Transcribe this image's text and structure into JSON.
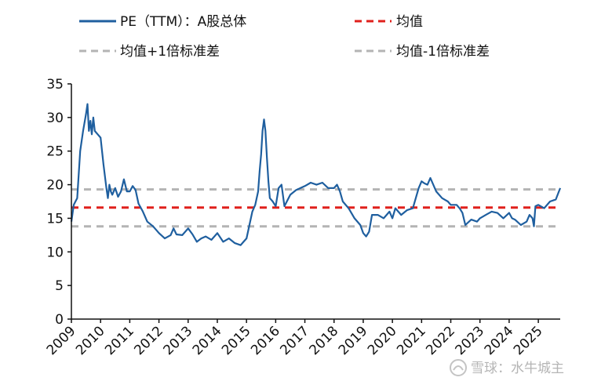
{
  "chart_data": {
    "type": "line",
    "title": "",
    "xlabel": "",
    "ylabel": "",
    "ylim": [
      0,
      35
    ],
    "yticks": [
      0,
      5,
      10,
      15,
      20,
      25,
      30,
      35
    ],
    "xlim": [
      2009.0,
      2025.75
    ],
    "xticks": [
      "2009",
      "2010",
      "2011",
      "2012",
      "2013",
      "2014",
      "2015",
      "2016",
      "2017",
      "2018",
      "2019",
      "2020",
      "2021",
      "2022",
      "2023",
      "2024",
      "2025"
    ],
    "legend": [
      {
        "label": "PE（TTM）：A股总体",
        "color": "#1f5f9f",
        "style": "solid"
      },
      {
        "label": "均值",
        "color": "#e0201c",
        "style": "dashed"
      },
      {
        "label": "均值+1倍标准差",
        "color": "#b4b4b4",
        "style": "dashed"
      },
      {
        "label": "均值-1倍标准差",
        "color": "#b4b4b4",
        "style": "dashed"
      }
    ],
    "reference_lines": {
      "mean": 16.6,
      "plus_1sd": 19.3,
      "minus_1sd": 13.8
    },
    "series": [
      {
        "name": "PE（TTM）：A股总体",
        "x": [
          2009.0,
          2009.08,
          2009.2,
          2009.3,
          2009.4,
          2009.5,
          2009.55,
          2009.6,
          2009.65,
          2009.7,
          2009.75,
          2009.8,
          2009.9,
          2010.0,
          2010.1,
          2010.2,
          2010.25,
          2010.3,
          2010.35,
          2010.4,
          2010.5,
          2010.6,
          2010.7,
          2010.8,
          2010.9,
          2011.0,
          2011.1,
          2011.2,
          2011.3,
          2011.45,
          2011.6,
          2011.8,
          2012.0,
          2012.2,
          2012.4,
          2012.5,
          2012.6,
          2012.8,
          2013.0,
          2013.15,
          2013.3,
          2013.45,
          2013.6,
          2013.8,
          2014.0,
          2014.2,
          2014.4,
          2014.6,
          2014.8,
          2014.9,
          2015.0,
          2015.1,
          2015.2,
          2015.3,
          2015.4,
          2015.45,
          2015.5,
          2015.55,
          2015.6,
          2015.65,
          2015.7,
          2015.75,
          2015.8,
          2015.9,
          2016.0,
          2016.1,
          2016.2,
          2016.3,
          2016.5,
          2016.7,
          2017.0,
          2017.2,
          2017.4,
          2017.6,
          2017.8,
          2018.0,
          2018.1,
          2018.2,
          2018.3,
          2018.5,
          2018.7,
          2018.9,
          2019.0,
          2019.1,
          2019.2,
          2019.3,
          2019.5,
          2019.7,
          2019.9,
          2020.0,
          2020.1,
          2020.2,
          2020.3,
          2020.5,
          2020.7,
          2020.9,
          2021.0,
          2021.1,
          2021.2,
          2021.3,
          2021.5,
          2021.7,
          2021.9,
          2022.0,
          2022.2,
          2022.3,
          2022.4,
          2022.5,
          2022.7,
          2022.9,
          2023.0,
          2023.2,
          2023.4,
          2023.6,
          2023.8,
          2024.0,
          2024.1,
          2024.2,
          2024.4,
          2024.6,
          2024.7,
          2024.8,
          2024.85,
          2024.9,
          2025.0,
          2025.2,
          2025.4,
          2025.6,
          2025.75
        ],
        "values": [
          14.5,
          17.0,
          18.0,
          25.0,
          28.0,
          30.5,
          32.0,
          28.0,
          29.5,
          27.5,
          30.0,
          28.0,
          27.5,
          27.0,
          23.0,
          19.5,
          18.0,
          20.0,
          19.0,
          18.5,
          19.5,
          18.2,
          19.0,
          20.8,
          19.0,
          19.0,
          19.8,
          19.2,
          17.2,
          16.0,
          14.5,
          13.8,
          12.8,
          12.0,
          12.5,
          13.5,
          12.6,
          12.5,
          13.5,
          12.6,
          11.5,
          12.0,
          12.3,
          11.8,
          12.8,
          11.5,
          12.0,
          11.3,
          11.0,
          11.5,
          12.0,
          14.0,
          16.0,
          17.0,
          19.0,
          22.0,
          24.5,
          28.0,
          29.7,
          28.0,
          24.0,
          20.5,
          18.0,
          17.5,
          16.8,
          19.5,
          20.0,
          16.8,
          18.5,
          19.2,
          19.8,
          20.3,
          20.0,
          20.3,
          19.5,
          19.5,
          20.0,
          19.0,
          17.5,
          16.5,
          15.0,
          14.0,
          12.8,
          12.3,
          13.0,
          15.5,
          15.5,
          15.0,
          16.0,
          15.0,
          16.5,
          16.0,
          15.5,
          16.2,
          16.5,
          19.5,
          20.5,
          20.2,
          20.0,
          21.0,
          19.0,
          18.0,
          17.5,
          17.0,
          17.0,
          16.5,
          15.8,
          14.0,
          14.8,
          14.5,
          15.0,
          15.5,
          16.0,
          15.8,
          15.0,
          15.8,
          15.0,
          14.8,
          14.0,
          14.5,
          15.5,
          15.0,
          13.8,
          16.8,
          17.0,
          16.5,
          17.5,
          17.8,
          19.5
        ]
      }
    ]
  },
  "watermark": {
    "text": "雪球：水牛城主"
  }
}
